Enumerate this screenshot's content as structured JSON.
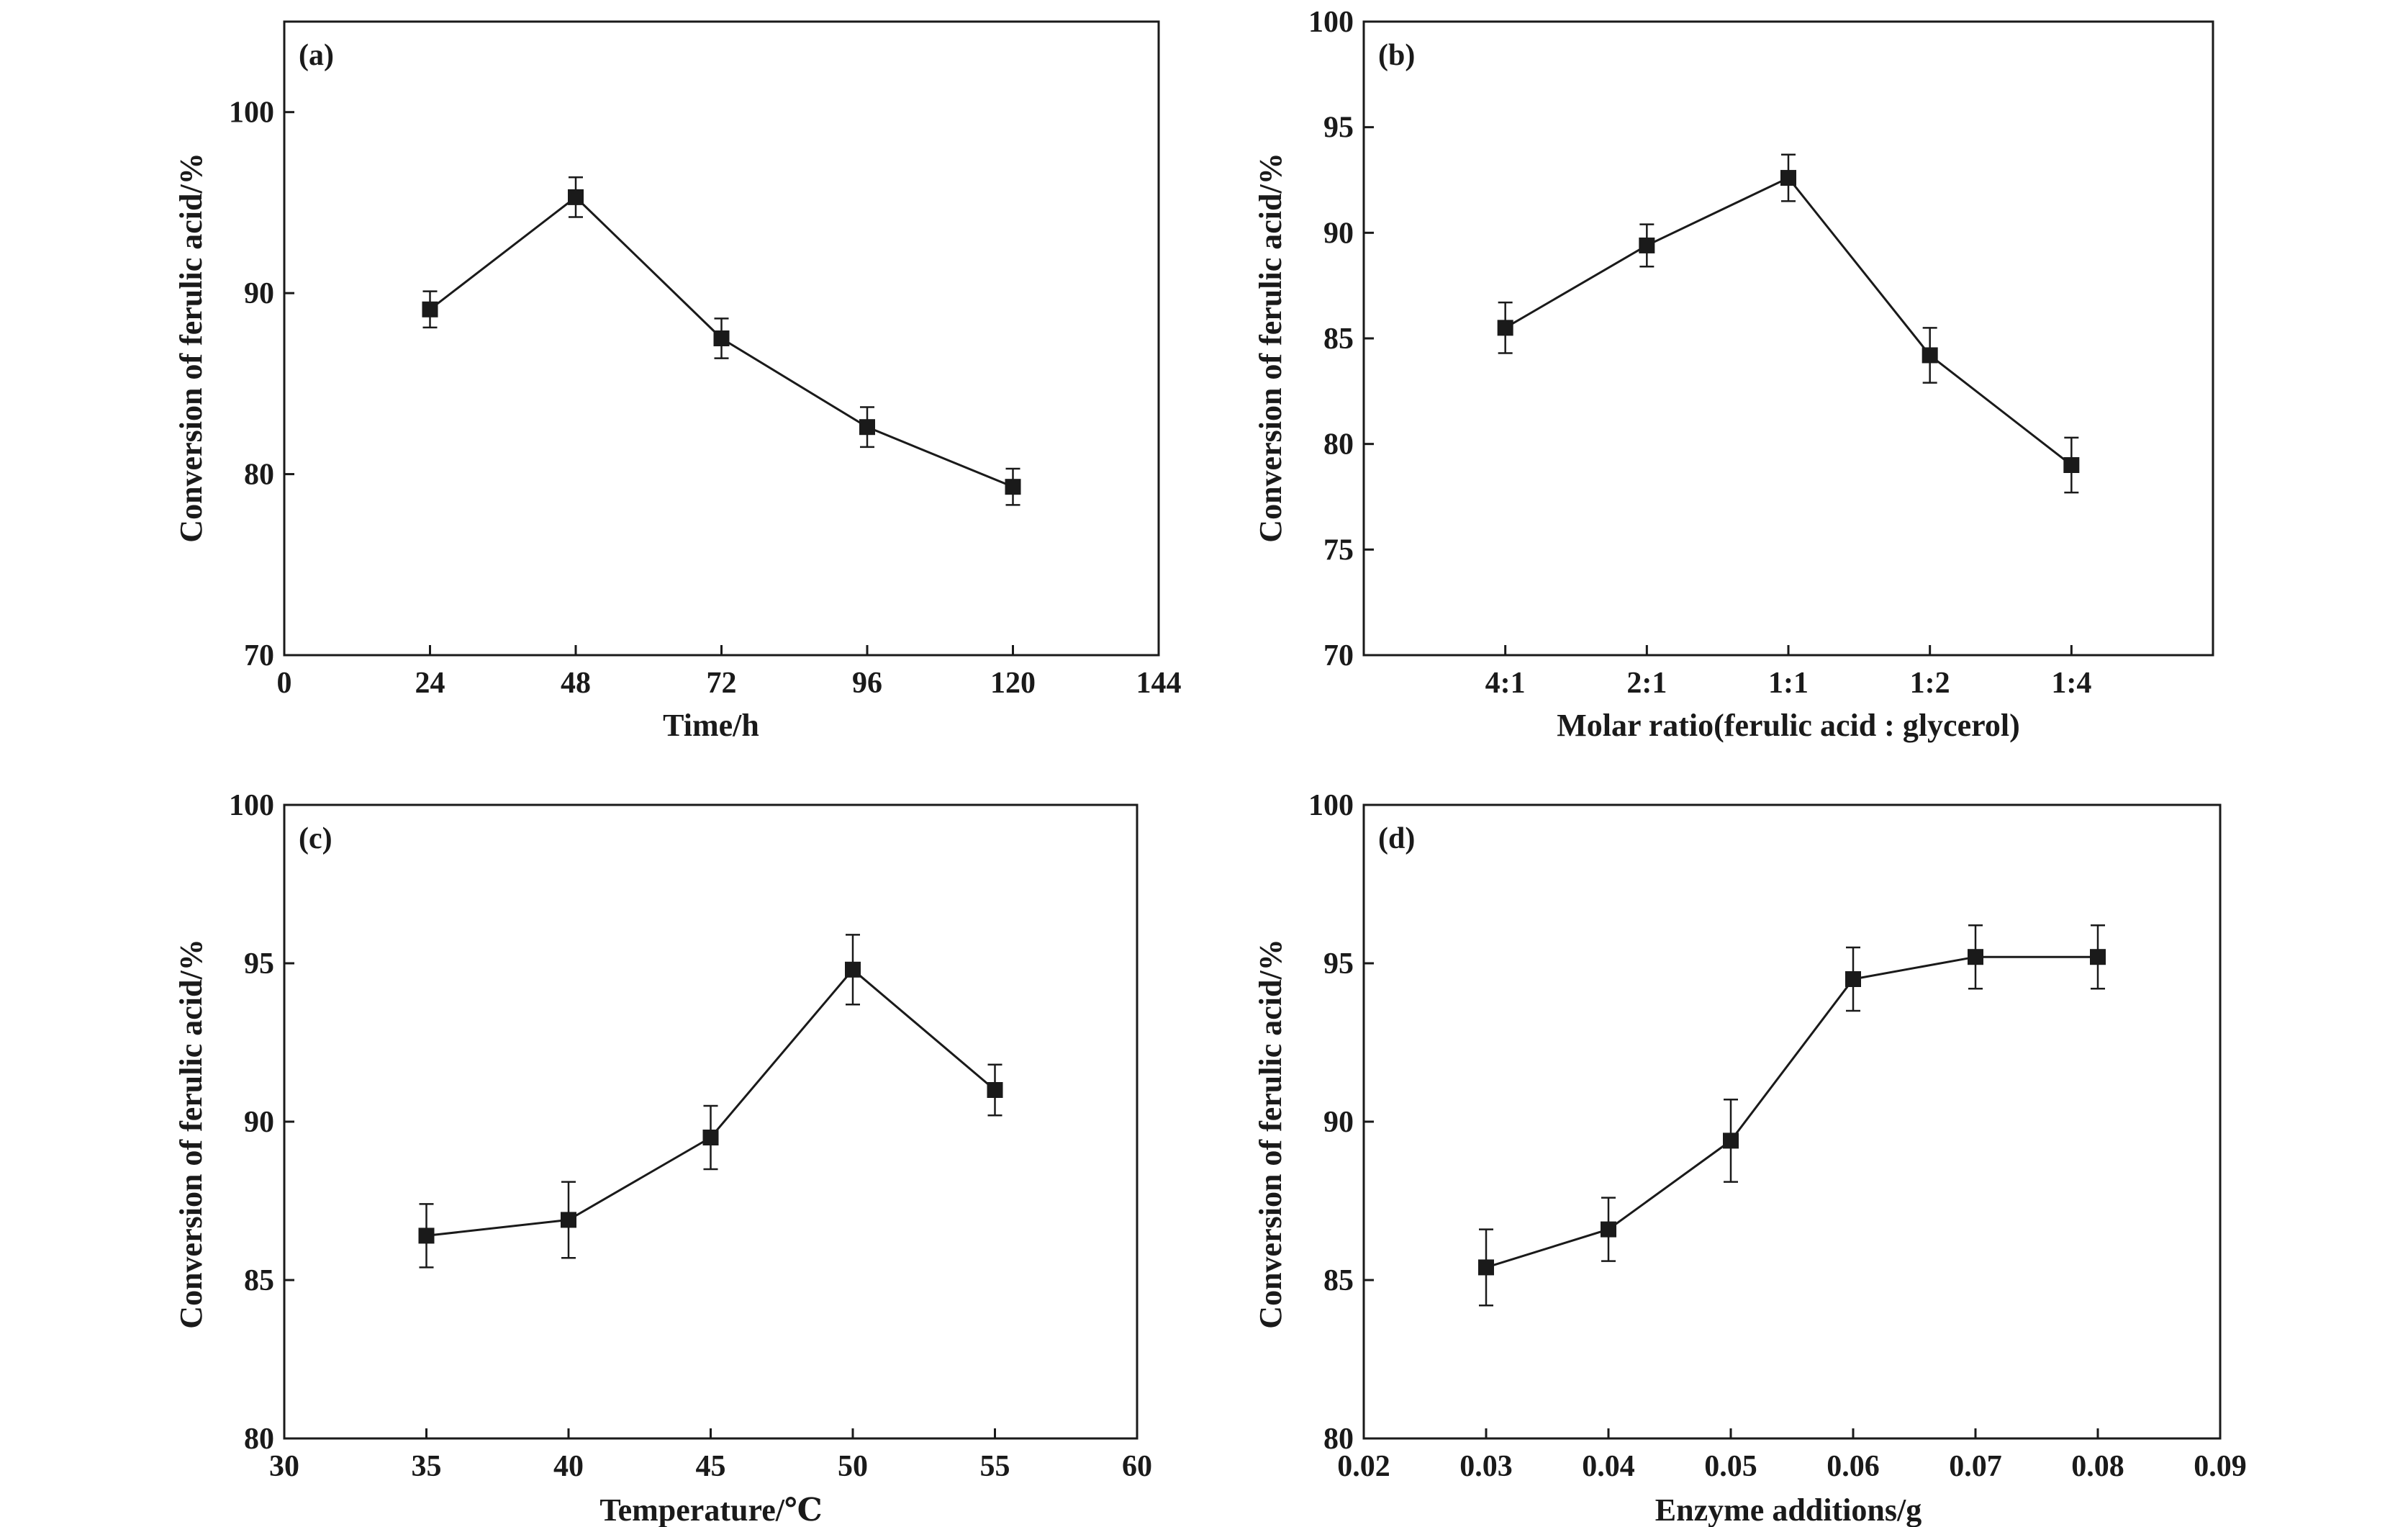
{
  "chart_data": [
    {
      "type": "line",
      "panel_label": "(a)",
      "xlabel": "Time/h",
      "ylabel": "Conversion of ferulic acid/%",
      "xlim": [
        0,
        144
      ],
      "ylim": [
        70,
        105
      ],
      "xticks": [
        0,
        24,
        48,
        72,
        96,
        120,
        144
      ],
      "yticks": [
        70,
        80,
        90,
        100
      ],
      "marker": "square",
      "series": [
        {
          "x": [
            24,
            48,
            72,
            96,
            120
          ],
          "y": [
            89.1,
            95.3,
            87.5,
            82.6,
            79.3
          ],
          "err": [
            1.0,
            1.1,
            1.1,
            1.1,
            1.0
          ]
        }
      ]
    },
    {
      "type": "line",
      "panel_label": "(b)",
      "xlabel": "Molar ratio(ferulic acid : glycerol)",
      "ylabel": "Conversion of ferulic acid/%",
      "categories": [
        "4:1",
        "2:1",
        "1:1",
        "1:2",
        "1:4"
      ],
      "ylim": [
        70,
        100
      ],
      "yticks": [
        70,
        75,
        80,
        85,
        90,
        95,
        100
      ],
      "marker": "square",
      "series": [
        {
          "y": [
            85.5,
            89.4,
            92.6,
            84.2,
            79.0
          ],
          "err": [
            1.2,
            1.0,
            1.1,
            1.3,
            1.3
          ]
        }
      ]
    },
    {
      "type": "line",
      "panel_label": "(c)",
      "xlabel": "Temperature/℃",
      "ylabel": "Conversion of ferulic acid/%",
      "xlim": [
        30,
        60
      ],
      "ylim": [
        80,
        100
      ],
      "xticks": [
        30,
        35,
        40,
        45,
        50,
        55,
        60
      ],
      "yticks": [
        80,
        85,
        90,
        95,
        100
      ],
      "marker": "square",
      "series": [
        {
          "x": [
            35,
            40,
            45,
            50,
            55
          ],
          "y": [
            86.4,
            86.9,
            89.5,
            94.8,
            91.0
          ],
          "err": [
            1.0,
            1.2,
            1.0,
            1.1,
            0.8
          ]
        }
      ]
    },
    {
      "type": "line",
      "panel_label": "(d)",
      "xlabel": "Enzyme additions/g",
      "ylabel": "Conversion of ferulic acid/%",
      "xlim": [
        0.02,
        0.09
      ],
      "ylim": [
        80,
        100
      ],
      "xticks": [
        0.02,
        0.03,
        0.04,
        0.05,
        0.06,
        0.07,
        0.08,
        0.09
      ],
      "xtick_labels": [
        "0.02",
        "0.03",
        "0.04",
        "0.05",
        "0.06",
        "0.07",
        "0.08",
        "0.09"
      ],
      "yticks": [
        80,
        85,
        90,
        95,
        100
      ],
      "marker": "square",
      "series": [
        {
          "x": [
            0.03,
            0.04,
            0.05,
            0.06,
            0.07,
            0.08
          ],
          "y": [
            85.4,
            86.6,
            89.4,
            94.5,
            95.2,
            95.2
          ],
          "err": [
            1.2,
            1.0,
            1.3,
            1.0,
            1.0,
            1.0
          ]
        }
      ]
    }
  ]
}
